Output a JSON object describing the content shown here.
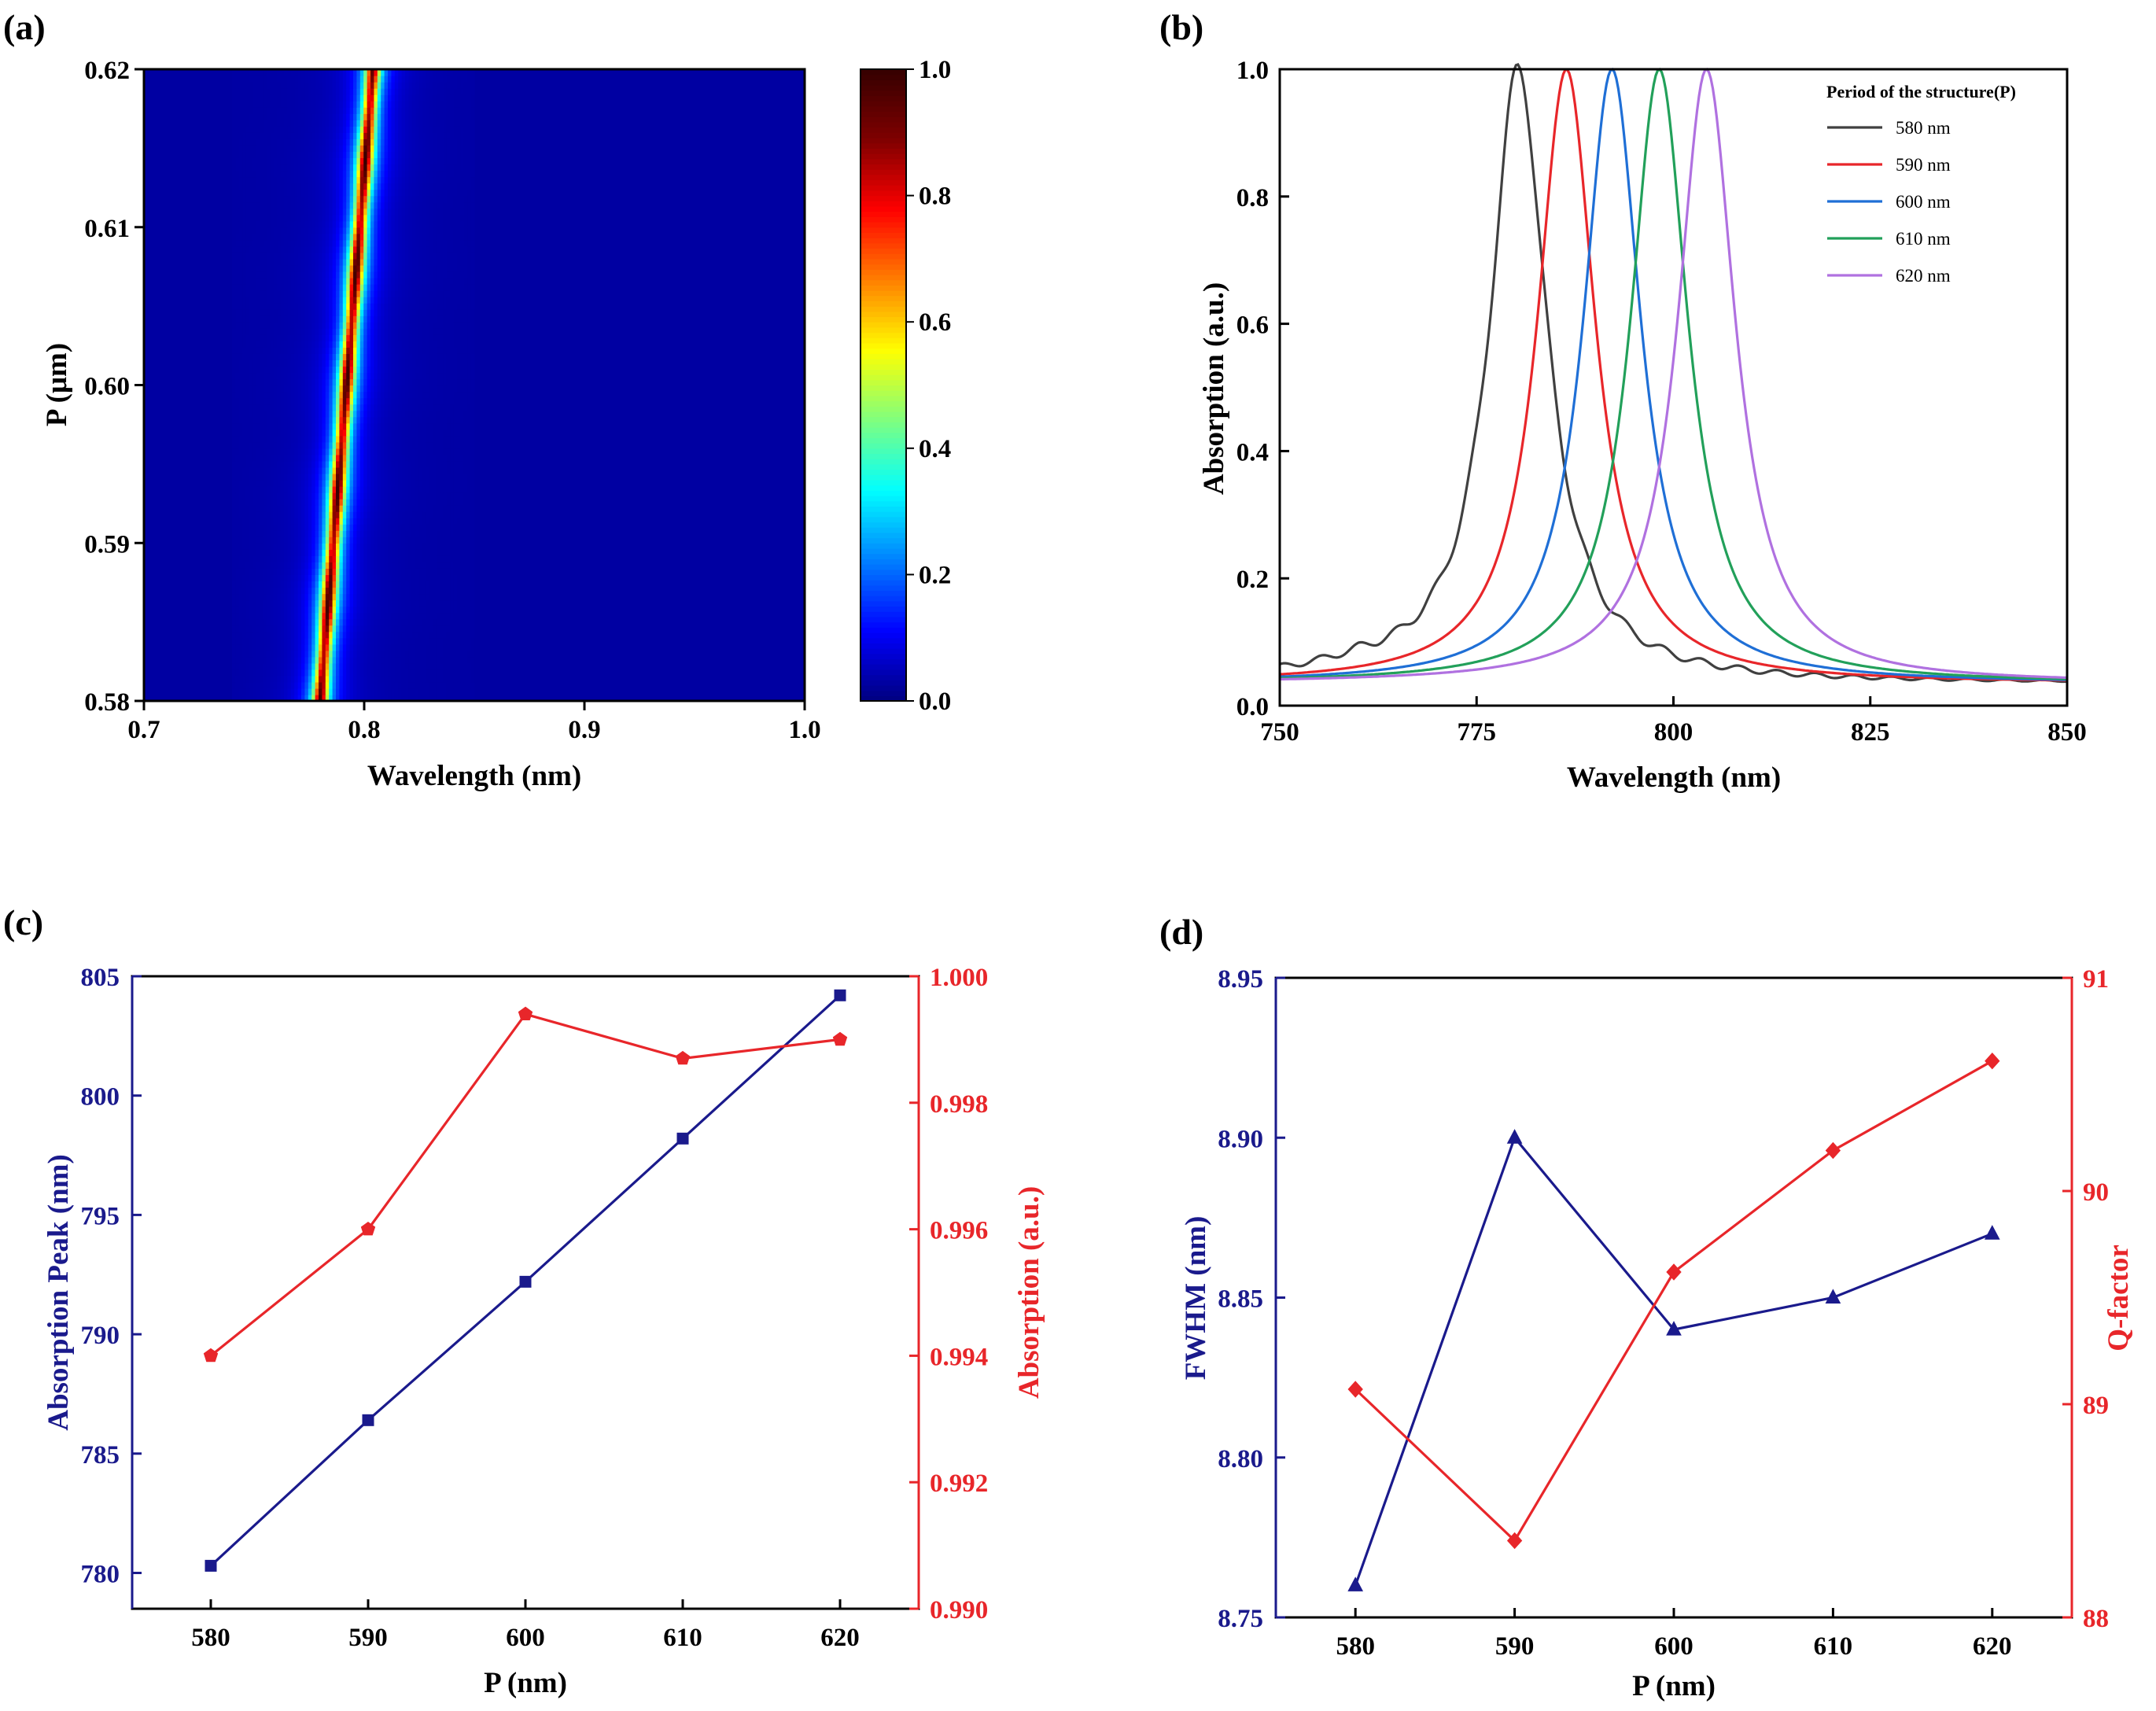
{
  "chart_data": [
    {
      "panel": "(a)",
      "type": "heatmap",
      "xlabel": "Wavelength (nm)",
      "ylabel": "P (μm)",
      "xlim": [
        0.7,
        1.0
      ],
      "ylim": [
        0.58,
        0.62
      ],
      "x_ticks": [
        "0.7",
        "0.8",
        "0.9",
        "1.0"
      ],
      "y_ticks": [
        "0.58",
        "0.59",
        "0.60",
        "0.61",
        "0.62"
      ],
      "ridge": [
        {
          "p": 0.58,
          "wavelength": 0.78
        },
        {
          "p": 0.59,
          "wavelength": 0.786
        },
        {
          "p": 0.6,
          "wavelength": 0.792
        },
        {
          "p": 0.61,
          "wavelength": 0.798
        },
        {
          "p": 0.62,
          "wavelength": 0.804
        }
      ],
      "peak_width": 0.006,
      "background_value": 0.03,
      "colorbar": {
        "range": [
          0.0,
          1.0
        ],
        "ticks": [
          "0.0",
          "0.2",
          "0.4",
          "0.6",
          "0.8",
          "1.0"
        ],
        "colors": [
          "#00007f",
          "#0000ff",
          "#007fff",
          "#00ffff",
          "#7fff7f",
          "#ffff00",
          "#ff7f00",
          "#ff0000",
          "#7f0000",
          "#350000"
        ]
      }
    },
    {
      "panel": "(b)",
      "type": "line",
      "xlabel": "Wavelength (nm)",
      "ylabel": "Absorption (a.u.)",
      "xlim": [
        750,
        850
      ],
      "ylim": [
        0.0,
        1.0
      ],
      "x_ticks": [
        "750",
        "775",
        "800",
        "825",
        "850"
      ],
      "y_ticks": [
        "0.0",
        "0.2",
        "0.4",
        "0.6",
        "0.8",
        "1.0"
      ],
      "legend_title": "Period of the structure(P)",
      "baseline": 0.035,
      "series": [
        {
          "name": "580 nm",
          "color": "#404040",
          "peak": 780.3,
          "fwhm": 8.76
        },
        {
          "name": "590 nm",
          "color": "#e8262a",
          "peak": 786.4,
          "fwhm": 8.9
        },
        {
          "name": "600 nm",
          "color": "#1f6fd6",
          "peak": 792.2,
          "fwhm": 8.84
        },
        {
          "name": "610 nm",
          "color": "#22a05a",
          "peak": 798.2,
          "fwhm": 8.85
        },
        {
          "name": "620 nm",
          "color": "#b071e0",
          "peak": 804.2,
          "fwhm": 8.87
        }
      ]
    },
    {
      "panel": "(c)",
      "type": "line",
      "xlabel": "P (nm)",
      "x": [
        580,
        590,
        600,
        610,
        620
      ],
      "x_ticks": [
        "580",
        "590",
        "600",
        "610",
        "620"
      ],
      "xlim": [
        575,
        625
      ],
      "left_axis": {
        "label": "Absorption Peak (nm)",
        "color": "#1a1a8c",
        "ylim": [
          778.5,
          805
        ],
        "ticks": [
          "780",
          "785",
          "790",
          "795",
          "800",
          "805"
        ]
      },
      "right_axis": {
        "label": "Absorption (a.u.)",
        "color": "#e8262a",
        "ylim": [
          0.99,
          1.0
        ],
        "ticks": [
          "0.990",
          "0.992",
          "0.994",
          "0.996",
          "0.998",
          "1.000"
        ]
      },
      "series": [
        {
          "name": "Absorption Peak",
          "axis": "left",
          "color": "#1a1a8c",
          "marker": "square",
          "values": [
            780.3,
            786.4,
            792.2,
            798.2,
            804.2
          ]
        },
        {
          "name": "Absorption",
          "axis": "right",
          "color": "#e8262a",
          "marker": "pentagon",
          "values": [
            0.994,
            0.996,
            0.9994,
            0.9987,
            0.999
          ]
        }
      ]
    },
    {
      "panel": "(d)",
      "type": "line",
      "xlabel": "P (nm)",
      "x": [
        580,
        590,
        600,
        610,
        620
      ],
      "x_ticks": [
        "580",
        "590",
        "600",
        "610",
        "620"
      ],
      "xlim": [
        575,
        625
      ],
      "left_axis": {
        "label": "FWHM (nm)",
        "color": "#1a1a8c",
        "ylim": [
          8.75,
          8.95
        ],
        "ticks": [
          "8.75",
          "8.80",
          "8.85",
          "8.90",
          "8.95"
        ]
      },
      "right_axis": {
        "label": "Q-factor",
        "color": "#e8262a",
        "ylim": [
          88,
          91
        ],
        "ticks": [
          "88",
          "89",
          "90",
          "91"
        ]
      },
      "series": [
        {
          "name": "FWHM",
          "axis": "left",
          "color": "#1a1a8c",
          "marker": "triangle",
          "values": [
            8.76,
            8.9,
            8.84,
            8.85,
            8.87
          ]
        },
        {
          "name": "Q-factor",
          "axis": "right",
          "color": "#e8262a",
          "marker": "diamond",
          "values": [
            89.07,
            88.36,
            89.62,
            90.19,
            90.61
          ]
        }
      ]
    }
  ]
}
